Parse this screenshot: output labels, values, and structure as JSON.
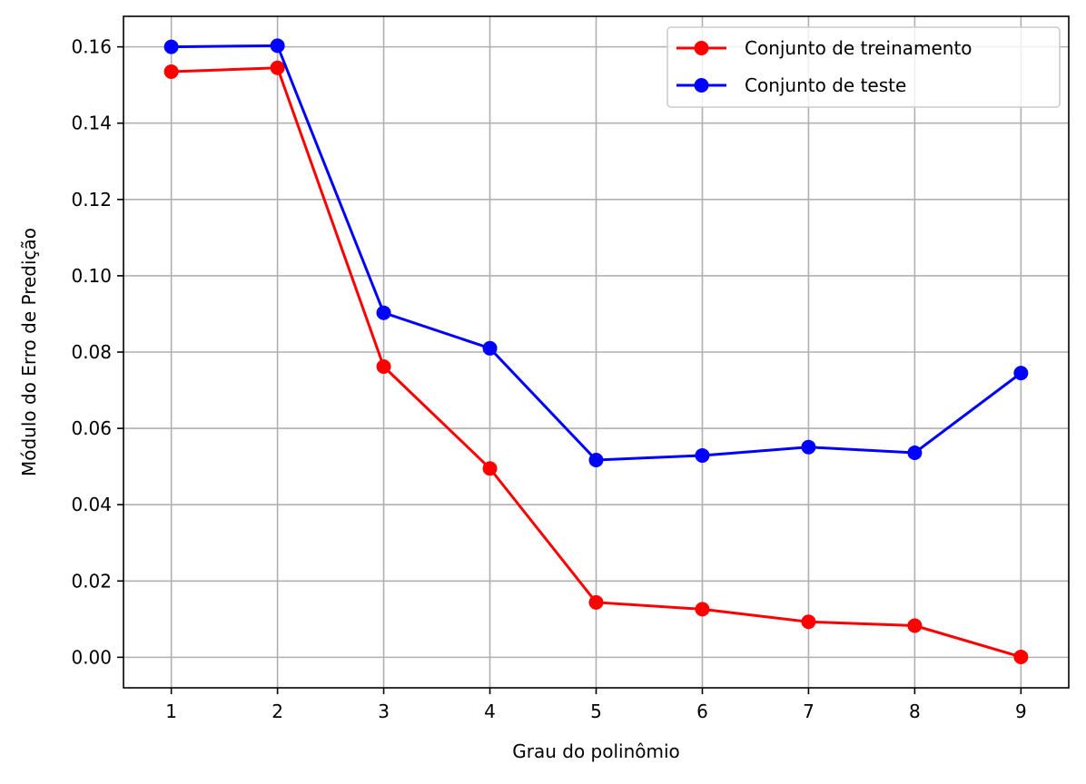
{
  "chart_data": {
    "type": "line",
    "title": "",
    "xlabel": "Grau do polinômio",
    "ylabel": "Módulo do Erro de Predição",
    "x": [
      1,
      2,
      3,
      4,
      5,
      6,
      7,
      8,
      9
    ],
    "x_ticks": [
      "1",
      "2",
      "3",
      "4",
      "5",
      "6",
      "7",
      "8",
      "9"
    ],
    "y_ticks": [
      "0.00",
      "0.02",
      "0.04",
      "0.06",
      "0.08",
      "0.10",
      "0.12",
      "0.14",
      "0.16"
    ],
    "xlim": [
      0.55,
      9.45
    ],
    "ylim": [
      -0.008,
      0.168
    ],
    "grid": true,
    "legend_position": "top-right",
    "series": [
      {
        "name": "Conjunto de treinamento",
        "color": "#ff0000",
        "marker": "circle",
        "values": [
          0.1535,
          0.1545,
          0.0762,
          0.0495,
          0.0144,
          0.0126,
          0.0093,
          0.0083,
          0.0001
        ]
      },
      {
        "name": "Conjunto de teste",
        "color": "#0000ff",
        "marker": "circle",
        "values": [
          0.16,
          0.1603,
          0.0903,
          0.081,
          0.0517,
          0.0529,
          0.0551,
          0.0536,
          0.0745
        ]
      }
    ]
  }
}
